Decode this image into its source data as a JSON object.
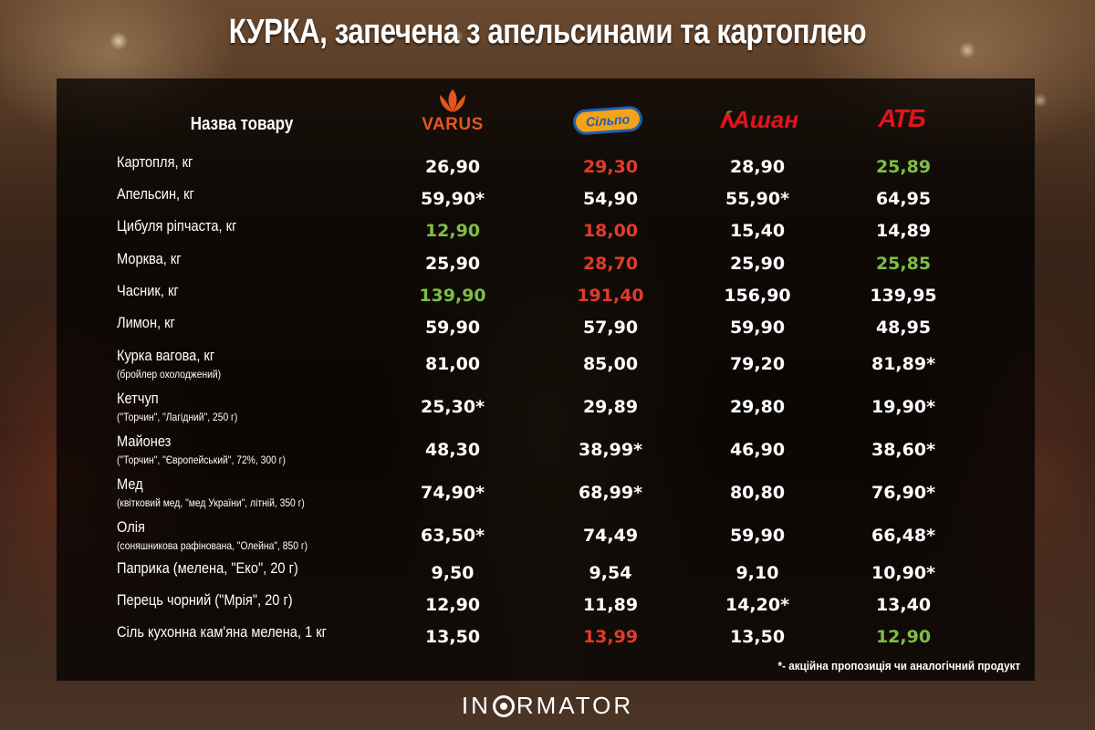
{
  "title": "КУРКА, запечена з апельсинами та картоплею",
  "header": {
    "name_column": "Назва товару",
    "stores": [
      {
        "name": "VARUS",
        "color": "#e8551d",
        "icon": "tulip-logo"
      },
      {
        "name": "Сільпо",
        "color": "#f4a21a",
        "icon": "silpo-pill-logo"
      },
      {
        "name": "Ашан",
        "color": "#e2141c",
        "icon": "auchan-bird-logo"
      },
      {
        "name": "АТБ",
        "color": "#e2141c",
        "icon": "atb-logo"
      }
    ]
  },
  "colors": {
    "normal": "#ffffff",
    "highest": "#e23b2a",
    "lowest": "#7dbf44"
  },
  "rows": [
    {
      "name": "Картопля, кг",
      "sub": "",
      "prices": [
        {
          "v": "26,90",
          "c": "white"
        },
        {
          "v": "29,30",
          "c": "red"
        },
        {
          "v": "28,90",
          "c": "white"
        },
        {
          "v": "25,89",
          "c": "green"
        }
      ]
    },
    {
      "name": "Апельсин, кг",
      "sub": "",
      "prices": [
        {
          "v": "59,90*",
          "c": "white"
        },
        {
          "v": "54,90",
          "c": "white"
        },
        {
          "v": "55,90*",
          "c": "white"
        },
        {
          "v": "64,95",
          "c": "white"
        }
      ]
    },
    {
      "name": "Цибуля ріпчаста, кг",
      "sub": "",
      "prices": [
        {
          "v": "12,90",
          "c": "green"
        },
        {
          "v": "18,00",
          "c": "red"
        },
        {
          "v": "15,40",
          "c": "white"
        },
        {
          "v": "14,89",
          "c": "white"
        }
      ]
    },
    {
      "name": "Морква, кг",
      "sub": "",
      "prices": [
        {
          "v": "25,90",
          "c": "white"
        },
        {
          "v": "28,70",
          "c": "red"
        },
        {
          "v": "25,90",
          "c": "white"
        },
        {
          "v": "25,85",
          "c": "green"
        }
      ]
    },
    {
      "name": "Часник, кг",
      "sub": "",
      "prices": [
        {
          "v": "139,90",
          "c": "green"
        },
        {
          "v": "191,40",
          "c": "red"
        },
        {
          "v": "156,90",
          "c": "white"
        },
        {
          "v": "139,95",
          "c": "white"
        }
      ]
    },
    {
      "name": "Лимон, кг",
      "sub": "",
      "prices": [
        {
          "v": "59,90",
          "c": "white"
        },
        {
          "v": "57,90",
          "c": "white"
        },
        {
          "v": "59,90",
          "c": "white"
        },
        {
          "v": "48,95",
          "c": "white"
        }
      ]
    },
    {
      "name": "Курка вагова, кг",
      "sub": "(бройлер охолоджений)",
      "prices": [
        {
          "v": "81,00",
          "c": "white"
        },
        {
          "v": "85,00",
          "c": "white"
        },
        {
          "v": "79,20",
          "c": "white"
        },
        {
          "v": "81,89*",
          "c": "white"
        }
      ]
    },
    {
      "name": "Кетчуп",
      "sub": "(\"Торчин\", \"Лагідний\", 250 г)",
      "prices": [
        {
          "v": "25,30*",
          "c": "white"
        },
        {
          "v": "29,89",
          "c": "white"
        },
        {
          "v": "29,80",
          "c": "white"
        },
        {
          "v": "19,90*",
          "c": "white"
        }
      ]
    },
    {
      "name": "Майонез",
      "sub": "(\"Торчин\", \"Європейський\", 72%, 300 г)",
      "prices": [
        {
          "v": "48,30",
          "c": "white"
        },
        {
          "v": "38,99*",
          "c": "white"
        },
        {
          "v": "46,90",
          "c": "white"
        },
        {
          "v": "38,60*",
          "c": "white"
        }
      ]
    },
    {
      "name": "Мед",
      "sub": "(квітковий мед, \"мед України\", літній, 350 г)",
      "prices": [
        {
          "v": "74,90*",
          "c": "white"
        },
        {
          "v": "68,99*",
          "c": "white"
        },
        {
          "v": "80,80",
          "c": "white"
        },
        {
          "v": "76,90*",
          "c": "white"
        }
      ]
    },
    {
      "name": "Олія",
      "sub": "(соняшникова рафінована, \"Олейна\", 850 г)",
      "prices": [
        {
          "v": "63,50*",
          "c": "white"
        },
        {
          "v": "74,49",
          "c": "white"
        },
        {
          "v": "59,90",
          "c": "white"
        },
        {
          "v": "66,48*",
          "c": "white"
        }
      ]
    },
    {
      "name": "Паприка (мелена, \"Еко\", 20 г)",
      "sub": "",
      "prices": [
        {
          "v": "9,50",
          "c": "white"
        },
        {
          "v": "9,54",
          "c": "white"
        },
        {
          "v": "9,10",
          "c": "white"
        },
        {
          "v": "10,90*",
          "c": "white"
        }
      ]
    },
    {
      "name": "Перець чорний (\"Мрія\", 20 г)",
      "sub": "",
      "prices": [
        {
          "v": "12,90",
          "c": "white"
        },
        {
          "v": "11,89",
          "c": "white"
        },
        {
          "v": "14,20*",
          "c": "white"
        },
        {
          "v": "13,40",
          "c": "white"
        }
      ]
    },
    {
      "name": "Сіль кухонна кам'яна мелена, 1 кг",
      "sub": "",
      "prices": [
        {
          "v": "13,50",
          "c": "white"
        },
        {
          "v": "13,99",
          "c": "red"
        },
        {
          "v": "13,50",
          "c": "white"
        },
        {
          "v": "12,90",
          "c": "green"
        }
      ]
    }
  ],
  "footnote": "*- акційна пропозиція чи аналогічний продукт",
  "brand": {
    "before": "IN",
    "after": "RMATOR"
  }
}
